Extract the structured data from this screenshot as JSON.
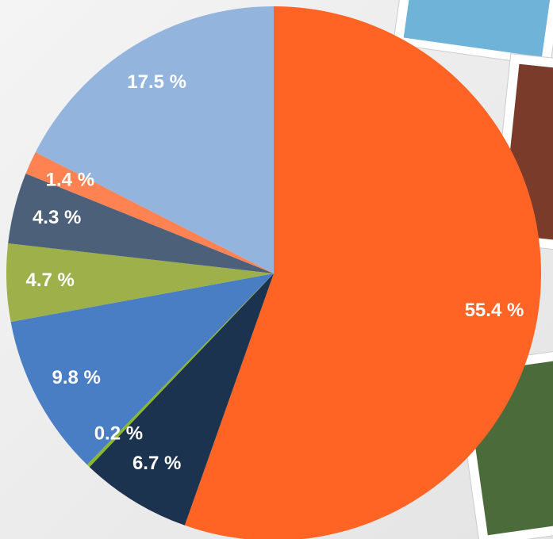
{
  "chart_data": {
    "type": "pie",
    "categories": [
      null,
      null,
      null,
      null,
      null,
      null,
      null,
      null
    ],
    "values": [
      55.4,
      6.7,
      0.2,
      9.8,
      4.7,
      4.3,
      1.4,
      17.5
    ],
    "value_labels": [
      "55.4 %",
      "6.7 %",
      "0.2 %",
      "9.8 %",
      "4.7 %",
      "4.3 %",
      "1.4 %",
      "17.5 %"
    ],
    "colors": [
      "#ff6424",
      "#1c3350",
      "#8ab82a",
      "#4a7ec4",
      "#9db04a",
      "#4d6079",
      "#ff8352",
      "#93b4dc"
    ]
  }
}
